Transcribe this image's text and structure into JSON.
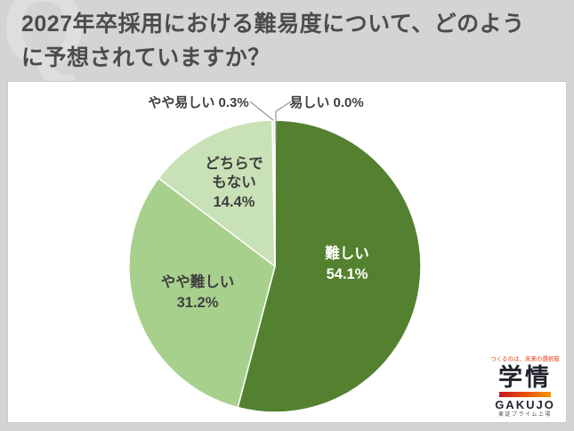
{
  "header": {
    "title": "2027年卒採用における難易度について、どのように予想されていますか？",
    "watermark_letter": "Q"
  },
  "chart_data": {
    "type": "pie",
    "title": "2027年卒採用における難易度について、どのように予想されていますか？",
    "unit": "%",
    "start_angle_deg": 0,
    "direction": "clockwise",
    "legend": "none",
    "segments": [
      {
        "label": "難しい",
        "value": 54.1,
        "value_text": "54.1%",
        "color": "#54812f",
        "text_color": "#ffffff",
        "placement": "inside"
      },
      {
        "label": "やや難しい",
        "value": 31.2,
        "value_text": "31.2%",
        "color": "#a8d08d",
        "text_color": "#3f3f3f",
        "placement": "inside"
      },
      {
        "label": "どちらでもない",
        "value": 14.4,
        "value_text": "14.4%",
        "color": "#c9e1b6",
        "text_color": "#3f3f3f",
        "placement": "inside",
        "label_lines": [
          "どちらで",
          "もない"
        ]
      },
      {
        "label": "やや易しい",
        "value": 0.3,
        "value_text": "0.3%",
        "color": "#e9f2e2",
        "text_color": "#3f3f3f",
        "placement": "outside"
      },
      {
        "label": "易しい",
        "value": 0.0,
        "value_text": "0.0%",
        "color": "#ffffff",
        "text_color": "#3f3f3f",
        "placement": "outside"
      }
    ]
  },
  "logo": {
    "slogan": "つくるのは、未来の選択肢",
    "brand_jp": "学情",
    "brand_en": "GAKUJO",
    "listing_note": "東証プライム上場",
    "accent_red": "#e8380d"
  }
}
